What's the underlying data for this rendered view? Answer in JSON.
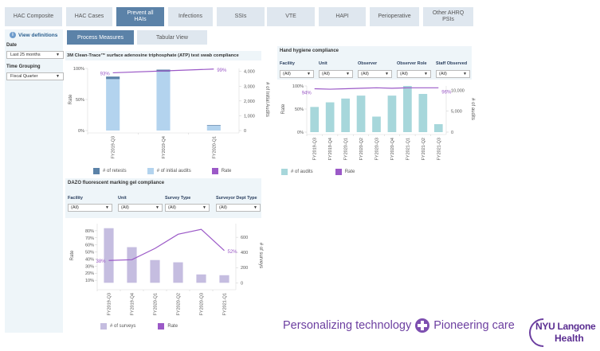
{
  "tabs": [
    {
      "label": "HAC Composite",
      "active": false
    },
    {
      "label": "HAC Cases",
      "active": false
    },
    {
      "label": "Prevent all HAIs",
      "active": true
    },
    {
      "label": "Infections",
      "active": false
    },
    {
      "label": "SSIs",
      "active": false
    },
    {
      "label": "VTE",
      "active": false
    },
    {
      "label": "HAPI",
      "active": false
    },
    {
      "label": "Perioperative",
      "active": false
    },
    {
      "label": "Other AHRQ PSIs",
      "active": false
    }
  ],
  "sidebar": {
    "view_definitions": "View definitions",
    "date_label": "Date",
    "date_value": "Last 25 months",
    "time_grouping_label": "Time Grouping",
    "time_grouping_value": "Fiscal Quarter"
  },
  "subtabs": {
    "process_measures": "Process Measures",
    "tabular_view": "Tabular View"
  },
  "colors": {
    "active_tab": "#5b82a8",
    "inactive_tab": "#dfe7ef",
    "rate_line": "#9b59c7",
    "retests": "#5b82a8",
    "initial_audits": "#b3d3ee",
    "audits_teal": "#a7d7db",
    "surveys": "#c5bde0",
    "brand_purple": "#6c3fa0"
  },
  "atp": {
    "title": "3M Clean-Trace™ surface adenosine triphosphate (ATP) test swab compliance",
    "legend": [
      "# of retests",
      "# of initial audits",
      "Rate"
    ]
  },
  "hand": {
    "title": "Hand hygiene compliance",
    "filters": [
      {
        "label": "Facility",
        "value": "(All)"
      },
      {
        "label": "Unit",
        "value": "(All)"
      },
      {
        "label": "Observer",
        "value": "(All)"
      },
      {
        "label": "Observer Role",
        "value": "(All)"
      },
      {
        "label": "Staff Observed",
        "value": "(All)"
      }
    ],
    "legend": [
      "# of audits",
      "Rate"
    ]
  },
  "dazo": {
    "title": "DAZO fluorescent marking gel compliance",
    "filters": [
      {
        "label": "Facility",
        "value": "(All)"
      },
      {
        "label": "Unit",
        "value": "(All)"
      },
      {
        "label": "Survey Type",
        "value": "(All)"
      },
      {
        "label": "Surveyor Dept Type",
        "value": "(All)"
      }
    ],
    "legend": [
      "# of surveys",
      "Rate"
    ]
  },
  "footer": {
    "tagline_left": "Personalizing technology",
    "tagline_right": "Pioneering care",
    "logo_line1": "NYU Langone",
    "logo_line2": "Health"
  },
  "chart_data": [
    {
      "type": "bar",
      "title": "3M Clean-Trace™ surface adenosine triphosphate (ATP) test swab compliance",
      "categories": [
        "FY2019-Q3",
        "FY2019-Q4",
        "FY2020-Q1"
      ],
      "ylabel": "Rate",
      "y2label": "# of Initial Audits",
      "ylim": [
        0,
        1
      ],
      "yticks": [
        "0%",
        "50%",
        "100%"
      ],
      "y2lim": [
        0,
        4200
      ],
      "y2ticks": [
        "0",
        "1,000",
        "2,000",
        "3,000",
        "4,000"
      ],
      "series": [
        {
          "name": "# of initial audits",
          "axis": "right",
          "stacked": true,
          "values": [
            3480,
            3980,
            330
          ]
        },
        {
          "name": "# of retests",
          "axis": "right",
          "stacked": true,
          "values": [
            170,
            140,
            40
          ]
        },
        {
          "name": "Rate",
          "axis": "left",
          "kind": "line",
          "values": [
            0.93,
            0.96,
            0.99
          ],
          "labels": [
            "93%",
            "",
            "99%"
          ]
        }
      ],
      "legend_position": "bottom"
    },
    {
      "type": "bar",
      "title": "Hand hygiene compliance",
      "categories": [
        "FY2019-Q3",
        "FY2019-Q4",
        "FY2020-Q1",
        "FY2020-Q2",
        "FY2020-Q3",
        "FY2020-Q4",
        "FY2021-Q1",
        "FY2021-Q2",
        "FY2021-Q3"
      ],
      "ylabel": "Rate",
      "y2label": "# of audits",
      "ylim": [
        0,
        1
      ],
      "yticks": [
        "0%",
        "50%",
        "100%"
      ],
      "y2lim": [
        0,
        11000
      ],
      "y2ticks": [
        "0",
        "5,000",
        "10,000"
      ],
      "series": [
        {
          "name": "# of audits",
          "axis": "right",
          "values": [
            6000,
            7100,
            8000,
            8700,
            3700,
            8700,
            11000,
            9100,
            1900
          ]
        },
        {
          "name": "Rate",
          "axis": "left",
          "kind": "line",
          "values": [
            0.94,
            0.93,
            0.94,
            0.95,
            0.96,
            0.95,
            0.96,
            0.96,
            0.96
          ],
          "labels": [
            "94%",
            "",
            "",
            "",
            "",
            "",
            "",
            "",
            "96%"
          ]
        }
      ],
      "legend_position": "bottom"
    },
    {
      "type": "bar",
      "title": "DAZO fluorescent marking gel compliance",
      "categories": [
        "FY2019-Q3",
        "FY2019-Q4",
        "FY2020-Q1",
        "FY2020-Q2",
        "FY2020-Q3",
        "FY2021-Q1"
      ],
      "ylabel": "Rate",
      "y2label": "# of surveys",
      "ylim": [
        0,
        0.9
      ],
      "yticks": [
        "10%",
        "20%",
        "30%",
        "40%",
        "50%",
        "60%",
        "70%",
        "80%"
      ],
      "y2lim": [
        -60,
        780
      ],
      "y2ticks": [
        "0",
        "200",
        "400",
        "600"
      ],
      "series": [
        {
          "name": "# of surveys",
          "axis": "right",
          "values": [
            720,
            470,
            300,
            270,
            110,
            100
          ]
        },
        {
          "name": "Rate",
          "axis": "left",
          "kind": "line",
          "values": [
            0.38,
            0.39,
            0.55,
            0.75,
            0.82,
            0.52
          ],
          "labels": [
            "38%",
            "",
            "",
            "",
            "",
            "52%"
          ]
        }
      ],
      "legend_position": "bottom"
    }
  ]
}
